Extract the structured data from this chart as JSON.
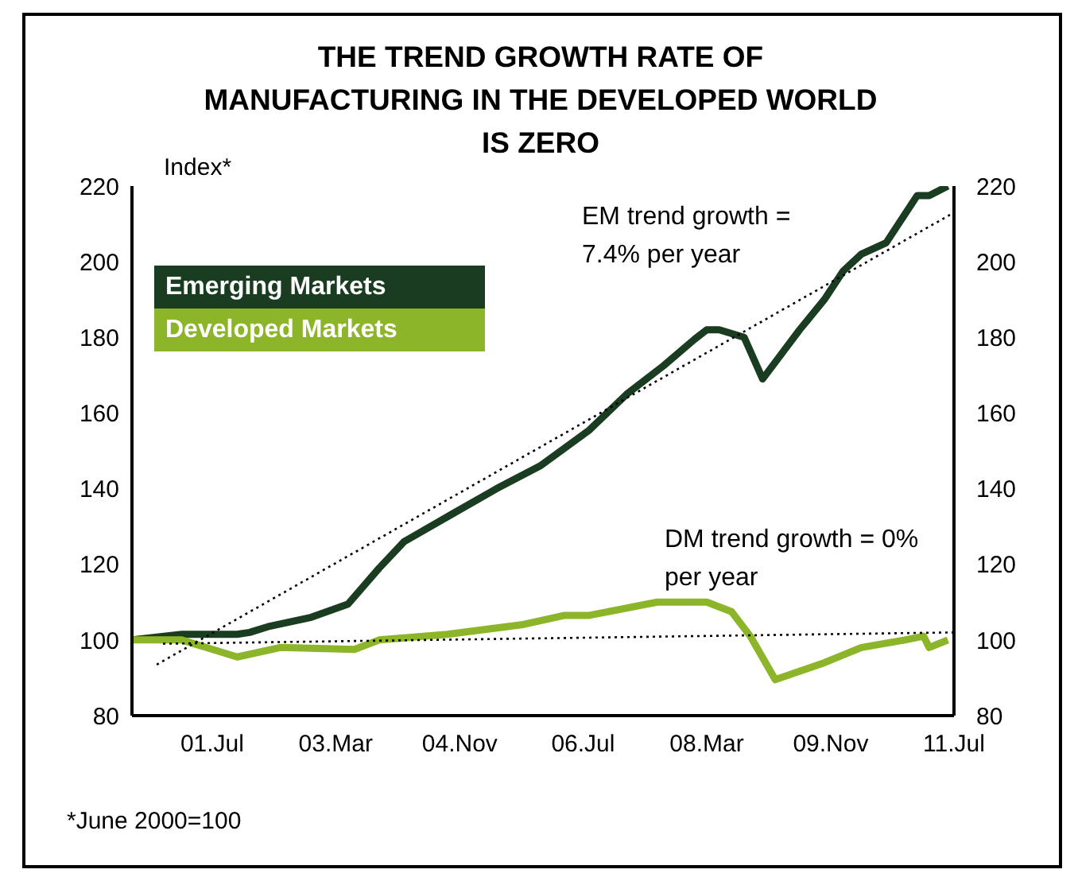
{
  "chart_data": {
    "type": "line",
    "title": "THE TREND GROWTH RATE OF MANUFACTURING IN THE DEVELOPED WORLD IS ZERO",
    "ylabel": "Index*",
    "xlim": [
      "2000-06",
      "2011-07"
    ],
    "xticks": [
      {
        "value": "2001-07",
        "label": "01.Jul"
      },
      {
        "value": "2003-03",
        "label": "03.Mar"
      },
      {
        "value": "2004-11",
        "label": "04.Nov"
      },
      {
        "value": "2006-07",
        "label": "06.Jul"
      },
      {
        "value": "2008-03",
        "label": "08.Mar"
      },
      {
        "value": "2009-11",
        "label": "09.Nov"
      },
      {
        "value": "2011-07",
        "label": "11.Jul"
      }
    ],
    "ylim": [
      80,
      220
    ],
    "yticks": [
      80,
      100,
      120,
      140,
      160,
      180,
      200,
      220
    ],
    "y2lim": [
      80,
      220
    ],
    "y2ticks": [
      80,
      100,
      120,
      140,
      160,
      180,
      200,
      220
    ],
    "grid": false,
    "legend": "top left",
    "marker": "none",
    "series": [
      {
        "name": "Emerging Markets",
        "color": "#1a3d22",
        "line_style": "solid",
        "x": [
          "2000-06",
          "2001-02",
          "2001-11",
          "2002-01",
          "2002-04",
          "2002-11",
          "2003-05",
          "2003-10",
          "2004-02",
          "2004-10",
          "2005-05",
          "2005-12",
          "2006-08",
          "2007-02",
          "2007-08",
          "2008-01",
          "2008-03",
          "2008-05",
          "2008-09",
          "2008-12",
          "2009-06",
          "2009-10",
          "2010-01",
          "2010-04",
          "2010-08",
          "2011-01",
          "2011-03",
          "2011-06"
        ],
        "values": [
          100,
          101.5,
          101.5,
          102,
          103.5,
          106,
          109.5,
          119,
          126,
          133.5,
          140,
          146,
          155.5,
          165,
          172.5,
          179.5,
          182,
          182,
          180,
          169,
          182,
          190,
          197.5,
          202,
          205,
          217.5,
          217.5,
          220
        ]
      },
      {
        "name": "Developed Markets",
        "color": "#8db52a",
        "line_style": "solid",
        "x": [
          "2000-06",
          "2001-02",
          "2001-11",
          "2002-06",
          "2003-06",
          "2003-10",
          "2004-09",
          "2005-09",
          "2006-04",
          "2006-08",
          "2007-07",
          "2008-03",
          "2008-07",
          "2008-10",
          "2009-02",
          "2009-10",
          "2010-04",
          "2010-11",
          "2011-02",
          "2011-03",
          "2011-06"
        ],
        "values": [
          100,
          100,
          95.5,
          98,
          97.5,
          100,
          101.5,
          104,
          106.5,
          106.5,
          110,
          110,
          107.5,
          101,
          89.5,
          94,
          98,
          100,
          101,
          98,
          100
        ]
      },
      {
        "type": "line",
        "color": "#000000",
        "line_style": "dotted",
        "x": [
          "2000-10",
          "2011-07"
        ],
        "values": [
          93.5,
          213
        ]
      },
      {
        "type": "line",
        "color": "#000000",
        "line_style": "dotted",
        "x": [
          "2000-11",
          "2011-07"
        ],
        "values": [
          99,
          102
        ]
      }
    ],
    "annotations": [
      "EM trend growth = 7.4% per year",
      "DM trend growth = 0% per year",
      "*June 2000=100"
    ]
  }
}
